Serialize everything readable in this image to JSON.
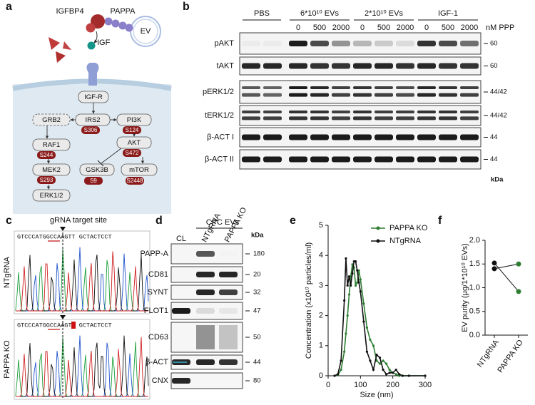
{
  "panel_labels": [
    "a",
    "b",
    "c",
    "d",
    "e",
    "f"
  ],
  "pathway": {
    "ligands": [
      "IGFBP4",
      "PAPPA",
      "EV",
      "IGF"
    ],
    "nodes": [
      "IGF-R",
      "GRB2",
      "IRS2",
      "PI3K",
      "RAF1",
      "AKT",
      "MEK2",
      "GSK3B",
      "mTOR",
      "ERK1/2"
    ],
    "sites": [
      "S306",
      "S124",
      "S244",
      "S472",
      "S293",
      "S9",
      "S2448"
    ]
  },
  "blot_b": {
    "groups": [
      "PBS",
      "6*10¹⁰ EVs",
      "2*10¹⁰ EVs",
      "IGF-1"
    ],
    "doses": [
      "0",
      "500",
      "2000"
    ],
    "dose_unit": "nM PPP",
    "kda_title": "kDa",
    "rows": [
      {
        "label": "pAKT",
        "kda": 60
      },
      {
        "label": "tAKT",
        "kda": 60
      },
      {
        "label": "pERK1/2",
        "kda": "44/42"
      },
      {
        "label": "tERK1/2",
        "kda": "44/42"
      },
      {
        "label": "β-ACT I",
        "kda": 44
      },
      {
        "label": "β-ACT II",
        "kda": 44
      }
    ]
  },
  "sequencing_c": {
    "title": "gRNA target site",
    "rows": [
      {
        "label": "NTgRNA",
        "sequence": "GTCCCATGGCCAAGTT GCTACTCCT"
      },
      {
        "label": "PAPPA KO",
        "sequence": "GTCCCATGGCCAAGTT GCTACTCCT"
      }
    ]
  },
  "blot_d": {
    "title": "CPC EVs",
    "lanes": [
      "CL",
      "NTgRNA",
      "PAPPA KO"
    ],
    "kda_title": "kDa",
    "rows": [
      {
        "label": "PAPP-A",
        "kda": 180
      },
      {
        "label": "CD81",
        "kda": 20
      },
      {
        "label": "SYNT",
        "kda": 32
      },
      {
        "label": "FLOT1",
        "kda": 47
      },
      {
        "label": "CD63",
        "kda": 50
      },
      {
        "label": "β-ACT",
        "kda": 44
      },
      {
        "label": "CNX",
        "kda": 80
      }
    ]
  },
  "chart_data": [
    {
      "type": "line",
      "x_label": "Size (nm)",
      "y_label": "Concentration (x10¹⁰ particles/ml)",
      "x": [
        20,
        30,
        40,
        50,
        55,
        60,
        65,
        70,
        75,
        80,
        85,
        90,
        95,
        100,
        110,
        120,
        130,
        140,
        150,
        160,
        170,
        180,
        190,
        200,
        210,
        220,
        230,
        250,
        300
      ],
      "series": [
        {
          "name": "PAPPA KO",
          "color": "#2e7d32",
          "values": [
            0,
            0.02,
            0.2,
            0.8,
            1.4,
            2.0,
            2.7,
            3.3,
            3.7,
            3.6,
            3.0,
            3.1,
            3.5,
            3.2,
            2.4,
            1.6,
            1.2,
            1.0,
            0.5,
            0.4,
            0.5,
            0.4,
            0.2,
            0.1,
            0.05,
            0,
            0,
            0,
            0
          ]
        },
        {
          "name": "NTgRNA",
          "color": "#111111",
          "values": [
            0,
            0.05,
            0.5,
            2.5,
            3.9,
            3.0,
            3.3,
            3.0,
            3.4,
            3.8,
            3.8,
            3.5,
            3.1,
            2.8,
            1.8,
            0.8,
            0.5,
            0.2,
            0.7,
            0.6,
            0.2,
            0.05,
            0.1,
            0.1,
            0.2,
            0.05,
            0,
            0,
            0
          ]
        }
      ],
      "xlim": [
        0,
        300
      ],
      "xticks": [
        0,
        100,
        200,
        300
      ],
      "ylim": [
        0,
        5
      ],
      "yticks": [
        0,
        1,
        2,
        3,
        4,
        5
      ],
      "legend": "top-right"
    },
    {
      "type": "paired-dot",
      "y_label": "EV purity (μg/1*10¹⁰ EVs)",
      "categories": [
        "NTgRNA",
        "PAPPA KO"
      ],
      "point_colors": [
        "#111111",
        "#2e7d32"
      ],
      "line_color": "#111111",
      "series": [
        {
          "values": [
            1.52,
            0.92
          ]
        },
        {
          "values": [
            1.4,
            1.5
          ]
        }
      ],
      "ylim": [
        0,
        2
      ],
      "yticks": [
        {
          "value": 0,
          "label": "0.0"
        },
        {
          "value": 0.5,
          "label": "0.5"
        },
        {
          "value": 1,
          "label": "1.0"
        },
        {
          "value": 1.5,
          "label": "1.5"
        },
        {
          "value": 2,
          "label": "2.0"
        }
      ]
    }
  ]
}
